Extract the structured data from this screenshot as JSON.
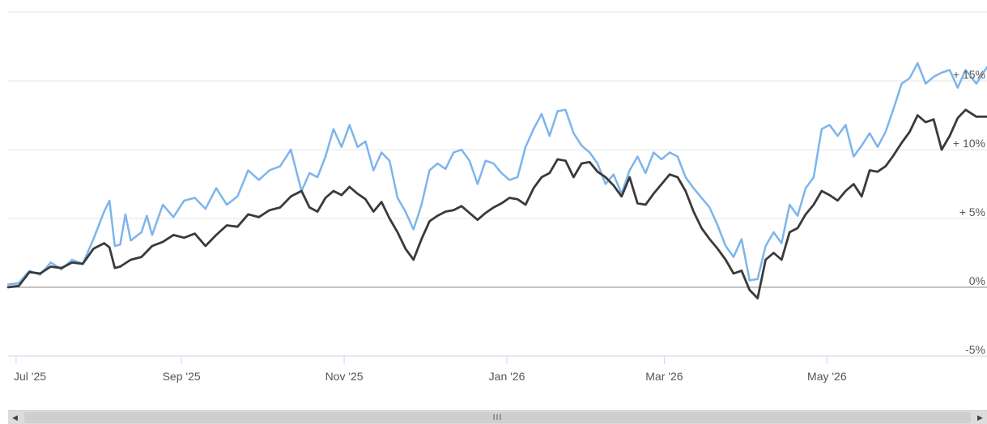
{
  "chart_data": {
    "type": "line",
    "x_start": "2025-06-28",
    "x_end": "2026-06-30",
    "x_ticks": [
      {
        "date": "2025-07-01",
        "label": "Jul '25"
      },
      {
        "date": "2025-09-01",
        "label": "Sep '25"
      },
      {
        "date": "2025-11-01",
        "label": "Nov '25"
      },
      {
        "date": "2026-01-01",
        "label": "Jan '26"
      },
      {
        "date": "2026-03-01",
        "label": "Mar '26"
      },
      {
        "date": "2026-05-01",
        "label": "May '26"
      }
    ],
    "y_ticks": [
      {
        "value": -5,
        "label": "-5%"
      },
      {
        "value": 0,
        "label": "0%"
      },
      {
        "value": 5,
        "label": "+ 5%"
      },
      {
        "value": 10,
        "label": "+ 10%"
      },
      {
        "value": 15,
        "label": "+ 15%"
      }
    ],
    "ylim": [
      -5,
      20
    ],
    "grid": true,
    "series": [
      {
        "color": "#7cb5ec",
        "points": [
          [
            "2025-06-28",
            0.2
          ],
          [
            "2025-07-02",
            0.3
          ],
          [
            "2025-07-06",
            1.2
          ],
          [
            "2025-07-10",
            0.9
          ],
          [
            "2025-07-14",
            1.8
          ],
          [
            "2025-07-18",
            1.3
          ],
          [
            "2025-07-22",
            2.0
          ],
          [
            "2025-07-26",
            1.7
          ],
          [
            "2025-07-30",
            3.5
          ],
          [
            "2025-08-03",
            5.5
          ],
          [
            "2025-08-05",
            6.3
          ],
          [
            "2025-08-07",
            3.0
          ],
          [
            "2025-08-09",
            3.1
          ],
          [
            "2025-08-11",
            5.3
          ],
          [
            "2025-08-13",
            3.4
          ],
          [
            "2025-08-17",
            4.0
          ],
          [
            "2025-08-19",
            5.2
          ],
          [
            "2025-08-21",
            3.8
          ],
          [
            "2025-08-25",
            6.0
          ],
          [
            "2025-08-29",
            5.1
          ],
          [
            "2025-09-02",
            6.3
          ],
          [
            "2025-09-06",
            6.5
          ],
          [
            "2025-09-10",
            5.7
          ],
          [
            "2025-09-14",
            7.2
          ],
          [
            "2025-09-18",
            6.0
          ],
          [
            "2025-09-22",
            6.6
          ],
          [
            "2025-09-26",
            8.5
          ],
          [
            "2025-09-30",
            7.8
          ],
          [
            "2025-10-04",
            8.5
          ],
          [
            "2025-10-08",
            8.8
          ],
          [
            "2025-10-12",
            10.0
          ],
          [
            "2025-10-16",
            7.0
          ],
          [
            "2025-10-19",
            8.3
          ],
          [
            "2025-10-22",
            8.0
          ],
          [
            "2025-10-25",
            9.5
          ],
          [
            "2025-10-28",
            11.5
          ],
          [
            "2025-10-31",
            10.2
          ],
          [
            "2025-11-03",
            11.8
          ],
          [
            "2025-11-06",
            10.2
          ],
          [
            "2025-11-09",
            10.6
          ],
          [
            "2025-11-12",
            8.5
          ],
          [
            "2025-11-15",
            9.8
          ],
          [
            "2025-11-18",
            9.2
          ],
          [
            "2025-11-21",
            6.5
          ],
          [
            "2025-11-24",
            5.5
          ],
          [
            "2025-11-27",
            4.2
          ],
          [
            "2025-11-30",
            6.0
          ],
          [
            "2025-12-03",
            8.5
          ],
          [
            "2025-12-06",
            9.0
          ],
          [
            "2025-12-09",
            8.6
          ],
          [
            "2025-12-12",
            9.8
          ],
          [
            "2025-12-15",
            10.0
          ],
          [
            "2025-12-18",
            9.2
          ],
          [
            "2025-12-21",
            7.5
          ],
          [
            "2025-12-24",
            9.2
          ],
          [
            "2025-12-27",
            9.0
          ],
          [
            "2025-12-30",
            8.3
          ],
          [
            "2026-01-02",
            7.8
          ],
          [
            "2026-01-05",
            8.0
          ],
          [
            "2026-01-08",
            10.2
          ],
          [
            "2026-01-11",
            11.5
          ],
          [
            "2026-01-14",
            12.6
          ],
          [
            "2026-01-17",
            11.0
          ],
          [
            "2026-01-20",
            12.8
          ],
          [
            "2026-01-23",
            12.9
          ],
          [
            "2026-01-26",
            11.2
          ],
          [
            "2026-01-29",
            10.3
          ],
          [
            "2026-02-01",
            9.8
          ],
          [
            "2026-02-04",
            9.0
          ],
          [
            "2026-02-07",
            7.5
          ],
          [
            "2026-02-10",
            8.2
          ],
          [
            "2026-02-13",
            6.8
          ],
          [
            "2026-02-16",
            8.5
          ],
          [
            "2026-02-19",
            9.5
          ],
          [
            "2026-02-22",
            8.3
          ],
          [
            "2026-02-25",
            9.8
          ],
          [
            "2026-02-28",
            9.3
          ],
          [
            "2026-03-03",
            9.8
          ],
          [
            "2026-03-06",
            9.5
          ],
          [
            "2026-03-09",
            8.0
          ],
          [
            "2026-03-12",
            7.2
          ],
          [
            "2026-03-15",
            6.5
          ],
          [
            "2026-03-18",
            5.8
          ],
          [
            "2026-03-21",
            4.5
          ],
          [
            "2026-03-24",
            3.0
          ],
          [
            "2026-03-27",
            2.2
          ],
          [
            "2026-03-30",
            3.5
          ],
          [
            "2026-04-02",
            0.5
          ],
          [
            "2026-04-05",
            0.6
          ],
          [
            "2026-04-08",
            3.0
          ],
          [
            "2026-04-11",
            4.0
          ],
          [
            "2026-04-14",
            3.2
          ],
          [
            "2026-04-17",
            6.0
          ],
          [
            "2026-04-20",
            5.2
          ],
          [
            "2026-04-23",
            7.2
          ],
          [
            "2026-04-26",
            8.0
          ],
          [
            "2026-04-29",
            11.5
          ],
          [
            "2026-05-02",
            11.8
          ],
          [
            "2026-05-05",
            11.0
          ],
          [
            "2026-05-08",
            11.8
          ],
          [
            "2026-05-11",
            9.5
          ],
          [
            "2026-05-14",
            10.3
          ],
          [
            "2026-05-17",
            11.2
          ],
          [
            "2026-05-20",
            10.2
          ],
          [
            "2026-05-23",
            11.3
          ],
          [
            "2026-05-26",
            13.0
          ],
          [
            "2026-05-29",
            14.8
          ],
          [
            "2026-06-01",
            15.2
          ],
          [
            "2026-06-04",
            16.3
          ],
          [
            "2026-06-07",
            14.8
          ],
          [
            "2026-06-10",
            15.3
          ],
          [
            "2026-06-13",
            15.6
          ],
          [
            "2026-06-16",
            15.8
          ],
          [
            "2026-06-19",
            14.5
          ],
          [
            "2026-06-22",
            15.8
          ],
          [
            "2026-06-26",
            14.8
          ],
          [
            "2026-06-30",
            16.0
          ]
        ]
      },
      {
        "color": "#3a3a3a",
        "points": [
          [
            "2025-06-28",
            0.0
          ],
          [
            "2025-07-02",
            0.1
          ],
          [
            "2025-07-06",
            1.1
          ],
          [
            "2025-07-10",
            1.0
          ],
          [
            "2025-07-14",
            1.5
          ],
          [
            "2025-07-18",
            1.4
          ],
          [
            "2025-07-22",
            1.8
          ],
          [
            "2025-07-26",
            1.7
          ],
          [
            "2025-07-30",
            2.8
          ],
          [
            "2025-08-03",
            3.2
          ],
          [
            "2025-08-05",
            2.9
          ],
          [
            "2025-08-07",
            1.4
          ],
          [
            "2025-08-09",
            1.5
          ],
          [
            "2025-08-13",
            2.0
          ],
          [
            "2025-08-17",
            2.2
          ],
          [
            "2025-08-21",
            3.0
          ],
          [
            "2025-08-25",
            3.3
          ],
          [
            "2025-08-29",
            3.8
          ],
          [
            "2025-09-02",
            3.6
          ],
          [
            "2025-09-06",
            3.9
          ],
          [
            "2025-09-10",
            3.0
          ],
          [
            "2025-09-14",
            3.8
          ],
          [
            "2025-09-18",
            4.5
          ],
          [
            "2025-09-22",
            4.4
          ],
          [
            "2025-09-26",
            5.3
          ],
          [
            "2025-09-30",
            5.1
          ],
          [
            "2025-10-04",
            5.6
          ],
          [
            "2025-10-08",
            5.8
          ],
          [
            "2025-10-12",
            6.6
          ],
          [
            "2025-10-16",
            7.0
          ],
          [
            "2025-10-19",
            5.8
          ],
          [
            "2025-10-22",
            5.5
          ],
          [
            "2025-10-25",
            6.5
          ],
          [
            "2025-10-28",
            7.0
          ],
          [
            "2025-10-31",
            6.7
          ],
          [
            "2025-11-03",
            7.3
          ],
          [
            "2025-11-06",
            6.8
          ],
          [
            "2025-11-09",
            6.4
          ],
          [
            "2025-11-12",
            5.5
          ],
          [
            "2025-11-15",
            6.2
          ],
          [
            "2025-11-18",
            5.0
          ],
          [
            "2025-11-21",
            4.0
          ],
          [
            "2025-11-24",
            2.8
          ],
          [
            "2025-11-27",
            2.0
          ],
          [
            "2025-11-30",
            3.5
          ],
          [
            "2025-12-03",
            4.8
          ],
          [
            "2025-12-06",
            5.2
          ],
          [
            "2025-12-09",
            5.5
          ],
          [
            "2025-12-12",
            5.6
          ],
          [
            "2025-12-15",
            5.9
          ],
          [
            "2025-12-18",
            5.4
          ],
          [
            "2025-12-21",
            4.9
          ],
          [
            "2025-12-24",
            5.4
          ],
          [
            "2025-12-27",
            5.8
          ],
          [
            "2025-12-30",
            6.1
          ],
          [
            "2026-01-02",
            6.5
          ],
          [
            "2026-01-05",
            6.4
          ],
          [
            "2026-01-08",
            6.0
          ],
          [
            "2026-01-11",
            7.2
          ],
          [
            "2026-01-14",
            8.0
          ],
          [
            "2026-01-17",
            8.3
          ],
          [
            "2026-01-20",
            9.3
          ],
          [
            "2026-01-23",
            9.2
          ],
          [
            "2026-01-26",
            8.0
          ],
          [
            "2026-01-29",
            9.0
          ],
          [
            "2026-02-01",
            9.1
          ],
          [
            "2026-02-04",
            8.4
          ],
          [
            "2026-02-07",
            8.0
          ],
          [
            "2026-02-10",
            7.4
          ],
          [
            "2026-02-13",
            6.6
          ],
          [
            "2026-02-16",
            8.0
          ],
          [
            "2026-02-19",
            6.1
          ],
          [
            "2026-02-22",
            6.0
          ],
          [
            "2026-02-25",
            6.8
          ],
          [
            "2026-02-28",
            7.5
          ],
          [
            "2026-03-03",
            8.2
          ],
          [
            "2026-03-06",
            8.0
          ],
          [
            "2026-03-09",
            7.0
          ],
          [
            "2026-03-12",
            5.5
          ],
          [
            "2026-03-15",
            4.3
          ],
          [
            "2026-03-18",
            3.5
          ],
          [
            "2026-03-21",
            2.8
          ],
          [
            "2026-03-24",
            2.0
          ],
          [
            "2026-03-27",
            1.0
          ],
          [
            "2026-03-30",
            1.2
          ],
          [
            "2026-04-02",
            -0.2
          ],
          [
            "2026-04-05",
            -0.8
          ],
          [
            "2026-04-08",
            2.0
          ],
          [
            "2026-04-11",
            2.5
          ],
          [
            "2026-04-14",
            2.0
          ],
          [
            "2026-04-17",
            4.0
          ],
          [
            "2026-04-20",
            4.3
          ],
          [
            "2026-04-23",
            5.3
          ],
          [
            "2026-04-26",
            6.0
          ],
          [
            "2026-04-29",
            7.0
          ],
          [
            "2026-05-02",
            6.7
          ],
          [
            "2026-05-05",
            6.3
          ],
          [
            "2026-05-08",
            7.0
          ],
          [
            "2026-05-11",
            7.5
          ],
          [
            "2026-05-14",
            6.6
          ],
          [
            "2026-05-17",
            8.5
          ],
          [
            "2026-05-20",
            8.4
          ],
          [
            "2026-05-23",
            8.8
          ],
          [
            "2026-05-26",
            9.6
          ],
          [
            "2026-05-29",
            10.5
          ],
          [
            "2026-06-01",
            11.3
          ],
          [
            "2026-06-04",
            12.5
          ],
          [
            "2026-06-07",
            12.0
          ],
          [
            "2026-06-10",
            12.2
          ],
          [
            "2026-06-13",
            10.0
          ],
          [
            "2026-06-16",
            11.0
          ],
          [
            "2026-06-19",
            12.3
          ],
          [
            "2026-06-22",
            12.9
          ],
          [
            "2026-06-26",
            12.4
          ],
          [
            "2026-06-30",
            12.4
          ]
        ]
      }
    ]
  },
  "scrollbar": {
    "left_arrow": "◀",
    "right_arrow": "▶",
    "grip": "III"
  }
}
